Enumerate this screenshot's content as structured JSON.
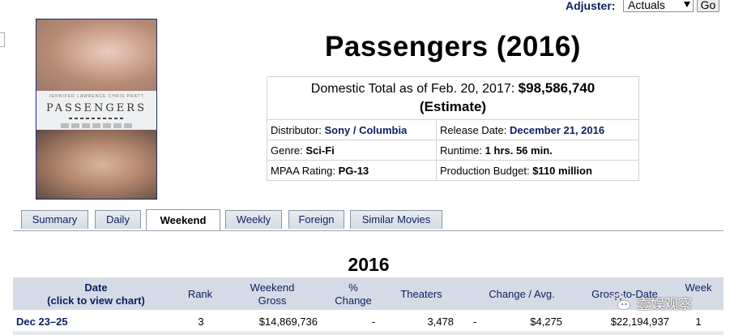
{
  "adjuster": {
    "label": "Adjuster:",
    "selected": "Actuals",
    "go_label": "Go"
  },
  "movie": {
    "title": "Passengers (2016)",
    "poster": {
      "title_text": "PASSENGERS",
      "credits_text": "JENNIFER LAWRENCE   CHRIS PRATT"
    }
  },
  "info": {
    "total_prefix": "Domestic Total as of Feb. 20, 2017:",
    "total_value": "$98,586,740",
    "total_note": "(Estimate)",
    "distributor_label": "Distributor:",
    "distributor_value": "Sony / Columbia",
    "release_label": "Release Date:",
    "release_value": "December 21, 2016",
    "genre_label": "Genre:",
    "genre_value": "Sci-Fi",
    "runtime_label": "Runtime:",
    "runtime_value": "1 hrs. 56 min.",
    "mpaa_label": "MPAA Rating:",
    "mpaa_value": "PG-13",
    "budget_label": "Production Budget:",
    "budget_value": "$110 million"
  },
  "tabs": [
    {
      "label": "Summary",
      "active": false
    },
    {
      "label": "Daily",
      "active": false
    },
    {
      "label": "Weekend",
      "active": true
    },
    {
      "label": "Weekly",
      "active": false
    },
    {
      "label": "Foreign",
      "active": false
    },
    {
      "label": "Similar Movies",
      "active": false
    }
  ],
  "year_heading": "2016",
  "table": {
    "headers": {
      "date_line1": "Date",
      "date_line2": "(click to view chart)",
      "rank": "Rank",
      "weekend_gross_line1": "Weekend",
      "weekend_gross_line2": "Gross",
      "change_line1": "%",
      "change_line2": "Change",
      "theaters": "Theaters",
      "change_avg": "Change / Avg.",
      "gross_to_date": "Gross-to-Date",
      "week": "Week"
    },
    "rows": [
      {
        "date": "Dec 23–25",
        "rank": "3",
        "weekend_gross": "$14,869,736",
        "change": "-",
        "theaters": "3,478",
        "theater_change": "-",
        "avg": "$4,275",
        "gross_to_date": "$22,194,937",
        "week": "1"
      }
    ]
  },
  "watermark": {
    "text": "壹娱观察",
    "icon": "wechat-icon"
  }
}
